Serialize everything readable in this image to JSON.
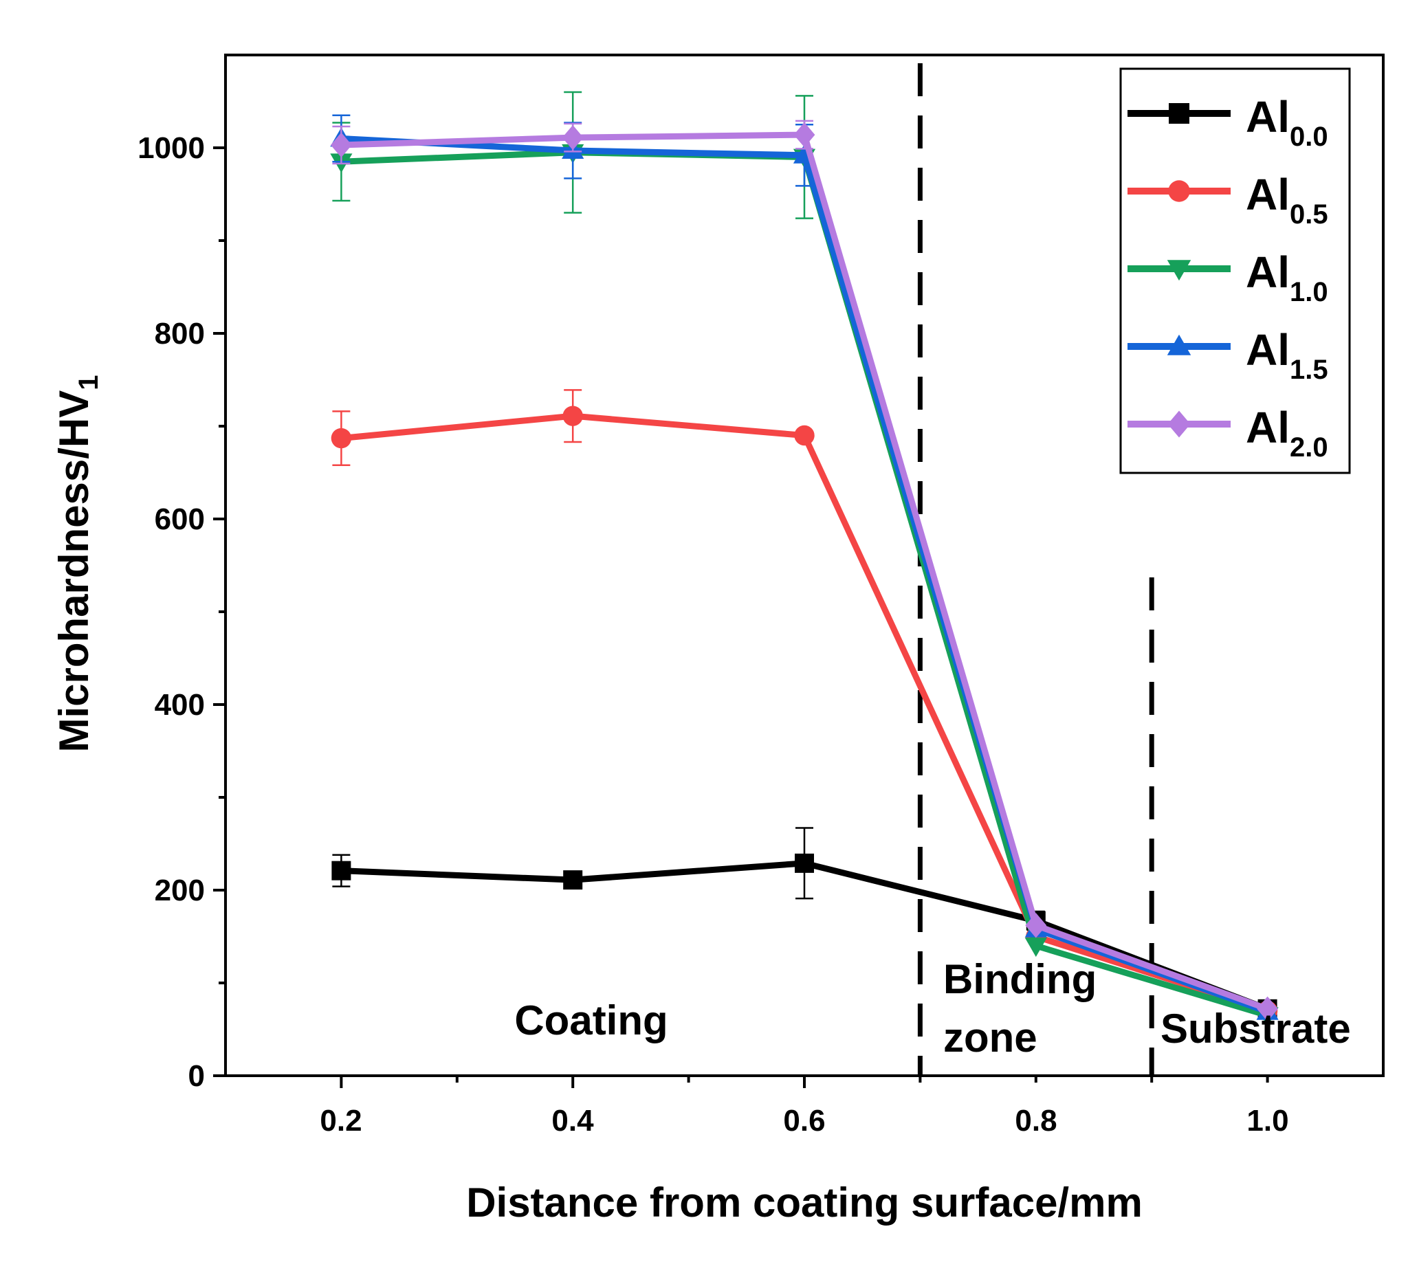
{
  "chart_data": {
    "type": "line",
    "xlabel": "Distance from coating surface/mm",
    "ylabel": "Microhardness/HV",
    "ylabel_sub": "1",
    "xlim": [
      0.1,
      1.1
    ],
    "ylim": [
      0,
      1100
    ],
    "x": [
      0.2,
      0.4,
      0.6,
      0.8,
      1.0
    ],
    "x_tick_labels": [
      "0.2",
      "0.4",
      "0.6",
      "0.8",
      "1.0"
    ],
    "y_ticks": [
      0,
      200,
      400,
      600,
      800,
      1000
    ],
    "y_tick_labels": [
      "0",
      "200",
      "400",
      "600",
      "800",
      "1000"
    ],
    "series": [
      {
        "name": "Al",
        "sub": "0.0",
        "color": "#000000",
        "marker": "square",
        "values": [
          221,
          211,
          229,
          167,
          72
        ],
        "errors": [
          17,
          0,
          38,
          10,
          0
        ]
      },
      {
        "name": "Al",
        "sub": "0.5",
        "color": "#F44545",
        "marker": "circle",
        "values": [
          687,
          711,
          690,
          150,
          70
        ],
        "errors": [
          29,
          28,
          0,
          0,
          0
        ]
      },
      {
        "name": "Al",
        "sub": "1.0",
        "color": "#16A05A",
        "marker": "triangle-down",
        "values": [
          985,
          995,
          990,
          140,
          65
        ],
        "errors": [
          42,
          65,
          66,
          0,
          0
        ]
      },
      {
        "name": "Al",
        "sub": "1.5",
        "color": "#1565D8",
        "marker": "triangle-up",
        "values": [
          1010,
          997,
          992,
          158,
          69
        ],
        "errors": [
          25,
          30,
          33,
          0,
          0
        ]
      },
      {
        "name": "Al",
        "sub": "2.0",
        "color": "#B57BE0",
        "marker": "diamond",
        "values": [
          1003,
          1011,
          1014,
          162,
          72
        ],
        "errors": [
          20,
          15,
          15,
          0,
          0
        ]
      }
    ],
    "dividers": [
      0.7,
      0.9
    ],
    "regions": [
      {
        "label": "Coating"
      },
      {
        "label": "Binding"
      },
      {
        "label": "zone"
      },
      {
        "label": "Substrate"
      }
    ],
    "legend_position": "top-right"
  }
}
